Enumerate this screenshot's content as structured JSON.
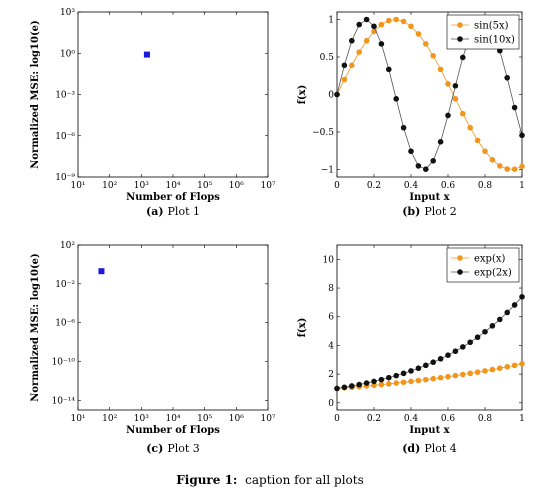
{
  "figure": {
    "caption_label": "Figure 1:",
    "caption_text": "caption for all plots"
  },
  "chart_data": [
    {
      "id": "plot1",
      "type": "scatter",
      "subcaption_tag": "(a)",
      "subcaption": "Plot 1",
      "xlabel": "Number of Flops",
      "ylabel": "Normalized MSE: log10(e)",
      "xscale": "log",
      "yscale": "log",
      "xlim": [
        10,
        10000000
      ],
      "ylim": [
        1e-09,
        1000
      ],
      "xtick_labels": [
        "10¹",
        "10²",
        "10³",
        "10⁴",
        "10⁵",
        "10⁶",
        "10⁷"
      ],
      "ytick_labels": [
        "10⁻⁹",
        "10⁻⁶",
        "10⁻³",
        "10⁰",
        "10³"
      ],
      "grid": false,
      "marker_color": "#1a1adb",
      "points": [
        {
          "x": 1500,
          "y": 0.8
        }
      ]
    },
    {
      "id": "plot2",
      "type": "line",
      "subcaption_tag": "(b)",
      "subcaption": "Plot 2",
      "xlabel": "Input x",
      "ylabel": "f(x)",
      "xlim": [
        0,
        1
      ],
      "ylim": [
        -1.1,
        1.1
      ],
      "xtick_labels": [
        "0",
        "0.2",
        "0.4",
        "0.6",
        "0.8",
        "1"
      ],
      "ytick_labels": [
        "−1",
        "−0.5",
        "0",
        "0.5",
        "1"
      ],
      "grid": false,
      "legend_position": "top-right",
      "series": [
        {
          "name": "sin(5x)",
          "color": "#f0961e",
          "x": [
            0,
            0.04,
            0.08,
            0.12,
            0.16,
            0.2,
            0.24,
            0.28,
            0.32,
            0.36,
            0.4,
            0.44,
            0.48,
            0.52,
            0.56,
            0.6,
            0.64,
            0.68,
            0.72,
            0.76,
            0.8,
            0.84,
            0.88,
            0.92,
            0.96,
            1
          ],
          "y": [
            0,
            0.199,
            0.389,
            0.565,
            0.717,
            0.841,
            0.932,
            0.985,
            1.0,
            0.974,
            0.909,
            0.808,
            0.675,
            0.516,
            0.335,
            0.141,
            -0.058,
            -0.256,
            -0.443,
            -0.612,
            -0.757,
            -0.871,
            -0.952,
            -0.994,
            -0.996,
            -0.959
          ]
        },
        {
          "name": "sin(10x)",
          "color": "#111111",
          "x": [
            0,
            0.04,
            0.08,
            0.12,
            0.16,
            0.2,
            0.24,
            0.28,
            0.32,
            0.36,
            0.4,
            0.44,
            0.48,
            0.52,
            0.56,
            0.6,
            0.64,
            0.68,
            0.72,
            0.76,
            0.8,
            0.84,
            0.88,
            0.92,
            0.96,
            1
          ],
          "y": [
            0,
            0.389,
            0.717,
            0.932,
            1.0,
            0.909,
            0.675,
            0.335,
            -0.058,
            -0.443,
            -0.757,
            -0.952,
            -0.996,
            -0.884,
            -0.631,
            -0.279,
            0.116,
            0.494,
            0.794,
            0.968,
            0.989,
            0.855,
            0.584,
            0.223,
            -0.174,
            -0.544
          ]
        }
      ]
    },
    {
      "id": "plot3",
      "type": "scatter",
      "subcaption_tag": "(c)",
      "subcaption": "Plot 3",
      "xlabel": "Number of Flops",
      "ylabel": "Normalized MSE: log10(e)",
      "xscale": "log",
      "yscale": "log",
      "xlim": [
        10,
        10000000
      ],
      "ylim": [
        1e-15,
        100
      ],
      "xtick_labels": [
        "10¹",
        "10²",
        "10³",
        "10⁴",
        "10⁵",
        "10⁶",
        "10⁷"
      ],
      "ytick_labels": [
        "10⁻¹⁴",
        "10⁻¹⁰",
        "10⁻⁶",
        "10⁻²",
        "10²"
      ],
      "grid": false,
      "marker_color": "#1a1adb",
      "points": [
        {
          "x": 55,
          "y": 0.2
        }
      ]
    },
    {
      "id": "plot4",
      "type": "line",
      "subcaption_tag": "(d)",
      "subcaption": "Plot 4",
      "xlabel": "Input x",
      "ylabel": "f(x)",
      "xlim": [
        0,
        1
      ],
      "ylim": [
        -0.5,
        11
      ],
      "xtick_labels": [
        "0",
        "0.2",
        "0.4",
        "0.6",
        "0.8",
        "1"
      ],
      "ytick_labels": [
        "0",
        "2",
        "4",
        "6",
        "8",
        "10"
      ],
      "grid": false,
      "legend_position": "top-right",
      "series": [
        {
          "name": "exp(x)",
          "color": "#f0961e",
          "x": [
            0,
            0.04,
            0.08,
            0.12,
            0.16,
            0.2,
            0.24,
            0.28,
            0.32,
            0.36,
            0.4,
            0.44,
            0.48,
            0.52,
            0.56,
            0.6,
            0.64,
            0.68,
            0.72,
            0.76,
            0.8,
            0.84,
            0.88,
            0.92,
            0.96,
            1
          ],
          "y": [
            1.0,
            1.041,
            1.083,
            1.127,
            1.174,
            1.221,
            1.271,
            1.323,
            1.377,
            1.433,
            1.492,
            1.553,
            1.616,
            1.682,
            1.751,
            1.822,
            1.896,
            1.974,
            2.054,
            2.138,
            2.226,
            2.316,
            2.411,
            2.509,
            2.612,
            2.718
          ]
        },
        {
          "name": "exp(2x)",
          "color": "#111111",
          "x": [
            0,
            0.04,
            0.08,
            0.12,
            0.16,
            0.2,
            0.24,
            0.28,
            0.32,
            0.36,
            0.4,
            0.44,
            0.48,
            0.52,
            0.56,
            0.6,
            0.64,
            0.68,
            0.72,
            0.76,
            0.8,
            0.84,
            0.88,
            0.92,
            0.96,
            1
          ],
          "y": [
            1.0,
            1.083,
            1.174,
            1.271,
            1.377,
            1.492,
            1.616,
            1.751,
            1.896,
            2.054,
            2.226,
            2.411,
            2.612,
            2.829,
            3.065,
            3.32,
            3.597,
            3.896,
            4.221,
            4.572,
            4.953,
            5.366,
            5.812,
            6.297,
            6.821,
            7.389
          ]
        }
      ]
    }
  ]
}
